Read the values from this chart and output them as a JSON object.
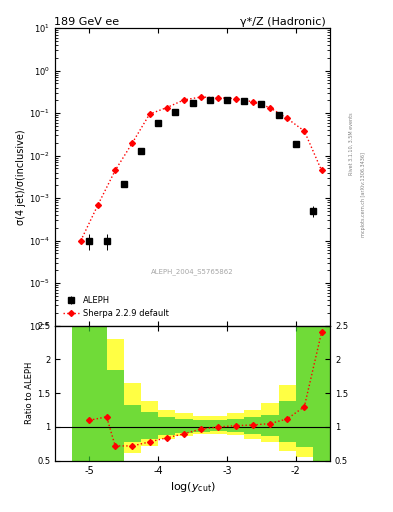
{
  "title_left": "189 GeV ee",
  "title_right": "γ*/Z (Hadronic)",
  "ylabel_main": "σ(4 jet)/σ(inclusive)",
  "ylabel_ratio": "Ratio to ALEPH",
  "xlabel": "log(y_{cut})",
  "right_label_top": "Rivet 3.1.10, 3.5M events",
  "right_label_bottom": "mcplots.cern.ch [arXiv:1306.3436]",
  "watermark": "ALEPH_2004_S5765862",
  "aleph_x": [
    -5.0,
    -4.75,
    -4.5,
    -4.25,
    -4.0,
    -3.75,
    -3.5,
    -3.25,
    -3.0,
    -2.75,
    -2.5,
    -2.25,
    -2.0,
    -1.75
  ],
  "aleph_y": [
    0.0001,
    0.0001,
    0.0022,
    0.013,
    0.06,
    0.105,
    0.17,
    0.2,
    0.2,
    0.19,
    0.16,
    0.09,
    0.019,
    0.0005
  ],
  "aleph_yerr_lo": [
    4e-05,
    4e-05,
    0.0002,
    0.0008,
    0.004,
    0.007,
    0.009,
    0.01,
    0.01,
    0.01,
    0.009,
    0.005,
    0.0015,
    0.00015
  ],
  "aleph_yerr_hi": [
    4e-05,
    4e-05,
    0.0002,
    0.0008,
    0.004,
    0.007,
    0.009,
    0.01,
    0.01,
    0.01,
    0.009,
    0.005,
    0.0015,
    0.00015
  ],
  "sherpa_x": [
    -5.125,
    -4.875,
    -4.625,
    -4.375,
    -4.125,
    -3.875,
    -3.625,
    -3.375,
    -3.125,
    -2.875,
    -2.625,
    -2.375,
    -2.125,
    -1.875,
    -1.625
  ],
  "sherpa_y": [
    0.0001,
    0.0007,
    0.0045,
    0.02,
    0.095,
    0.135,
    0.205,
    0.24,
    0.23,
    0.22,
    0.185,
    0.135,
    0.075,
    0.038,
    0.0045
  ],
  "ratio_sherpa_x": [
    -5.0,
    -4.75,
    -4.625,
    -4.375,
    -4.125,
    -3.875,
    -3.625,
    -3.375,
    -3.125,
    -2.875,
    -2.625,
    -2.375,
    -2.125,
    -1.875,
    -1.625
  ],
  "ratio_sherpa_y": [
    1.1,
    1.15,
    0.72,
    0.72,
    0.78,
    0.84,
    0.9,
    0.97,
    1.0,
    1.02,
    1.03,
    1.05,
    1.12,
    1.3,
    2.4
  ],
  "band_edges": [
    -5.25,
    -5.0,
    -4.75,
    -4.5,
    -4.25,
    -4.0,
    -3.75,
    -3.5,
    -3.25,
    -3.0,
    -2.75,
    -2.5,
    -2.25,
    -2.0,
    -1.75,
    -1.5
  ],
  "green_lo": [
    0.5,
    0.5,
    0.5,
    0.78,
    0.82,
    0.88,
    0.91,
    0.93,
    0.94,
    0.92,
    0.89,
    0.87,
    0.78,
    0.7,
    0.5
  ],
  "green_hi": [
    2.5,
    2.5,
    1.85,
    1.32,
    1.22,
    1.15,
    1.12,
    1.1,
    1.1,
    1.12,
    1.15,
    1.18,
    1.38,
    2.5,
    2.5
  ],
  "yellow_lo": [
    0.5,
    0.5,
    0.5,
    0.62,
    0.72,
    0.82,
    0.87,
    0.89,
    0.9,
    0.88,
    0.82,
    0.78,
    0.65,
    0.55,
    0.5
  ],
  "yellow_hi": [
    2.5,
    2.5,
    2.3,
    1.65,
    1.38,
    1.25,
    1.2,
    1.17,
    1.17,
    1.2,
    1.25,
    1.35,
    1.62,
    2.5,
    2.5
  ],
  "xlim": [
    -5.5,
    -1.5
  ],
  "ylim_main": [
    1e-06,
    10
  ],
  "ylim_ratio": [
    0.5,
    2.5
  ],
  "color_aleph": "black",
  "color_sherpa": "red",
  "color_green": "#33cc33",
  "color_yellow": "#ffff44",
  "bg_main": "white",
  "bg_ratio": "white"
}
